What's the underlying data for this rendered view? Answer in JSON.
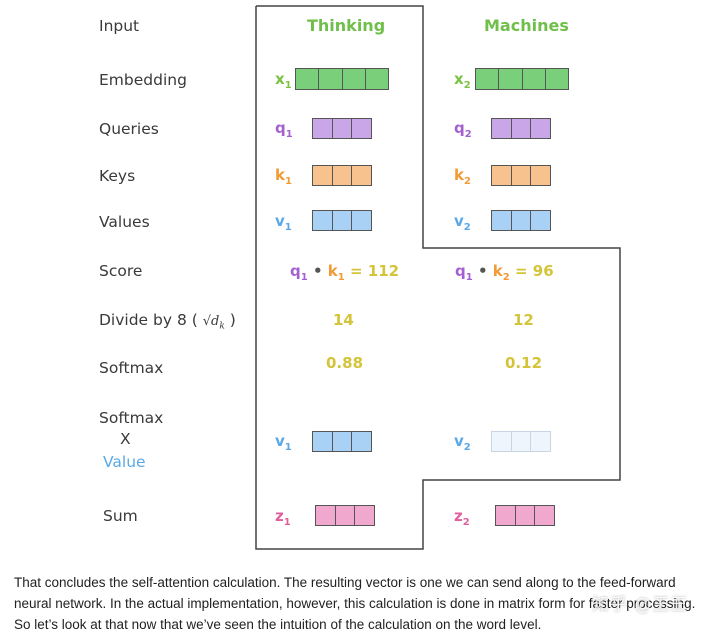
{
  "row_labels": {
    "input": "Input",
    "embedding": "Embedding",
    "queries": "Queries",
    "keys": "Keys",
    "values": "Values",
    "score": "Score",
    "divide": "Divide by 8 (",
    "divide_close": ")",
    "divide_sqrt": "√d",
    "divide_sqrt_sub": "k",
    "softmax": "Softmax",
    "softmax_x_line1": "Softmax",
    "softmax_x_line2": "X",
    "softmax_x_line3": "Value",
    "sum": "Sum"
  },
  "columns": [
    {
      "word": "Thinking",
      "embedding": {
        "sym": "x",
        "sub": "1"
      },
      "query": {
        "sym": "q",
        "sub": "1"
      },
      "key": {
        "sym": "k",
        "sub": "1"
      },
      "value": {
        "sym": "v",
        "sub": "1"
      },
      "score": {
        "q": "q",
        "q_sub": "1",
        "dot": "•",
        "k": "k",
        "k_sub": "1",
        "eq": "=",
        "val": "112"
      },
      "divided": "14",
      "softmax": "0.88",
      "weighted_value": {
        "sym": "v",
        "sub": "1"
      },
      "sum": {
        "sym": "z",
        "sub": "1"
      }
    },
    {
      "word": "Machines",
      "embedding": {
        "sym": "x",
        "sub": "2"
      },
      "query": {
        "sym": "q",
        "sub": "2"
      },
      "key": {
        "sym": "k",
        "sub": "2"
      },
      "value": {
        "sym": "v",
        "sub": "2"
      },
      "score": {
        "q": "q",
        "q_sub": "1",
        "dot": "•",
        "k": "k",
        "k_sub": "2",
        "eq": "=",
        "val": "96"
      },
      "divided": "12",
      "softmax": "0.12",
      "weighted_value": {
        "sym": "v",
        "sub": "2"
      },
      "sum": {
        "sym": "z",
        "sub": "2"
      }
    }
  ],
  "colors": {
    "embedding": "#7ad07a",
    "query": "#c9a6e8",
    "key": "#f8c28e",
    "value": "#a9d0f5",
    "value_faded": "#eef5fd",
    "sum": "#f0a8cf",
    "word": "#6fbf4a",
    "x_sym": "#7cc242",
    "q_sym": "#a45fd0",
    "k_sym": "#f29a36",
    "v_sym": "#5aa9e6",
    "z_sym": "#e0609e",
    "number": "#d4c43a"
  },
  "caption": "That concludes the self-attention calculation. The resulting vector is one we can send along to the feed-forward neural network. In the actual implementation, however, this calculation is done in matrix form for faster processing. So let’s look at that now that we’ve seen the intuition of the calculation on the word level.",
  "watermark": "知乎 @王王"
}
